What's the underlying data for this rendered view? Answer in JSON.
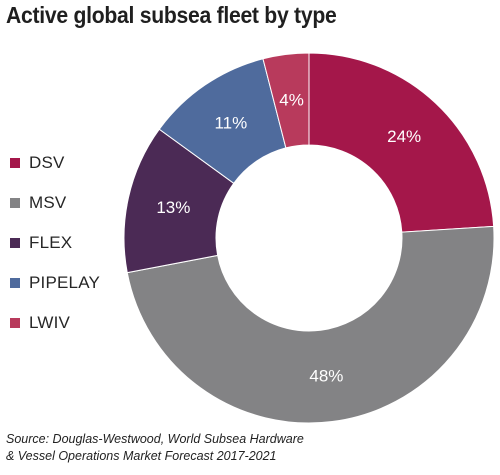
{
  "chart_data": {
    "type": "pie",
    "title": "Active global subsea fleet by type",
    "categories": [
      "DSV",
      "MSV",
      "FLEX",
      "PIPELAY",
      "LWIV"
    ],
    "values": [
      24,
      48,
      13,
      11,
      4
    ],
    "labels": [
      "24%",
      "48%",
      "13%",
      "11%",
      "4%"
    ],
    "colors": [
      "#a4174a",
      "#838385",
      "#4b2a55",
      "#4f6b9d",
      "#b83a5c"
    ],
    "donut": true,
    "legend": "left"
  },
  "source": {
    "line1": "Source: Douglas-Westwood, World Subsea Hardware",
    "line2": "& Vessel Operations Market Forecast 2017-2021"
  }
}
